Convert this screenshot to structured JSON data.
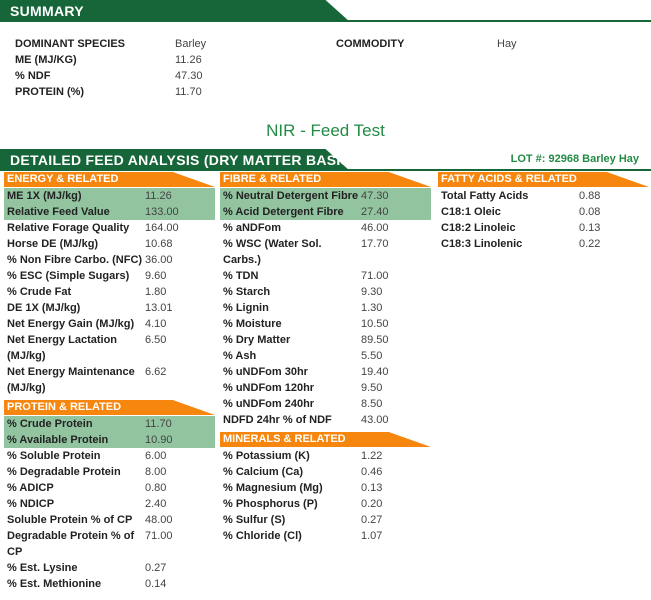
{
  "summary": {
    "title": "SUMMARY",
    "rows": [
      {
        "label": "DOMINANT SPECIES",
        "value": "Barley"
      },
      {
        "label": "ME (MJ/KG)",
        "value": "11.26"
      },
      {
        "label": "% NDF",
        "value": "47.30"
      },
      {
        "label": "PROTEIN (%)",
        "value": "11.70"
      }
    ],
    "commodity_label": "COMMODITY",
    "commodity_value": "Hay"
  },
  "report_title": "NIR - Feed Test",
  "detail": {
    "title": "DETAILED FEED ANALYSIS (DRY MATTER BASIS)",
    "lot": "LOT #: 92968 Barley Hay"
  },
  "colors": {
    "green": "#17663a",
    "orange": "#f7860e",
    "highlight": "#92c4a0"
  },
  "sections": [
    {
      "id": "energy",
      "col": 0,
      "title": "ENERGY & RELATED",
      "rows": [
        {
          "label": "ME 1X (MJ/kg)",
          "value": "11.26",
          "hl": true
        },
        {
          "label": "Relative Feed Value",
          "value": "133.00",
          "hl": true
        },
        {
          "label": "Relative Forage Quality",
          "value": "164.00"
        },
        {
          "label": "Horse DE (MJ/kg)",
          "value": "10.68"
        },
        {
          "label": "% Non Fibre Carbo. (NFC)",
          "value": "36.00"
        },
        {
          "label": "% ESC (Simple Sugars)",
          "value": "9.60"
        },
        {
          "label": "% Crude Fat",
          "value": "1.80"
        },
        {
          "label": "DE 1X (MJ/kg)",
          "value": "13.01"
        },
        {
          "label": "Net Energy Gain (MJ/kg)",
          "value": "4.10"
        },
        {
          "label": "Net Energy Lactation (MJ/kg)",
          "value": "6.50"
        },
        {
          "label": "Net Energy Maintenance (MJ/kg)",
          "value": "6.62"
        }
      ]
    },
    {
      "id": "protein",
      "col": 0,
      "title": "PROTEIN & RELATED",
      "rows": [
        {
          "label": "% Crude Protein",
          "value": "11.70",
          "hl": true
        },
        {
          "label": "% Available Protein",
          "value": "10.90",
          "hl": true
        },
        {
          "label": "% Soluble Protein",
          "value": "6.00"
        },
        {
          "label": "% Degradable Protein",
          "value": "8.00"
        },
        {
          "label": "% ADICP",
          "value": "0.80"
        },
        {
          "label": "% NDICP",
          "value": "2.40"
        },
        {
          "label": "Soluble Protein % of CP",
          "value": "48.00"
        },
        {
          "label": "Degradable Protein % of CP",
          "value": "71.00"
        },
        {
          "label": "% Est. Lysine",
          "value": "0.27"
        },
        {
          "label": "% Est. Methionine",
          "value": "0.14"
        }
      ]
    },
    {
      "id": "fibre",
      "col": 1,
      "title": "FIBRE & RELATED",
      "rows": [
        {
          "label": "% Neutral Detergent Fibre",
          "value": "47.30",
          "hl": true
        },
        {
          "label": "% Acid Detergent Fibre",
          "value": "27.40",
          "hl": true
        },
        {
          "label": "% aNDFom",
          "value": "46.00"
        },
        {
          "label": "% WSC (Water Sol. Carbs.)",
          "value": "17.70"
        },
        {
          "label": "% TDN",
          "value": "71.00"
        },
        {
          "label": "% Starch",
          "value": "9.30"
        },
        {
          "label": "% Lignin",
          "value": "1.30"
        },
        {
          "label": "% Moisture",
          "value": "10.50"
        },
        {
          "label": "% Dry Matter",
          "value": "89.50"
        },
        {
          "label": "% Ash",
          "value": "5.50"
        },
        {
          "label": "% uNDFom 30hr",
          "value": "19.40"
        },
        {
          "label": "% uNDFom 120hr",
          "value": "9.50"
        },
        {
          "label": "% uNDFom 240hr",
          "value": "8.50"
        },
        {
          "label": "NDFD 24hr % of NDF",
          "value": "43.00"
        }
      ]
    },
    {
      "id": "minerals",
      "col": 1,
      "title": "MINERALS & RELATED",
      "rows": [
        {
          "label": "% Potassium (K)",
          "value": "1.22"
        },
        {
          "label": "% Calcium (Ca)",
          "value": "0.46"
        },
        {
          "label": "% Magnesium (Mg)",
          "value": "0.13"
        },
        {
          "label": "% Phosphorus (P)",
          "value": "0.20"
        },
        {
          "label": "% Sulfur (S)",
          "value": "0.27"
        },
        {
          "label": "% Chloride (Cl)",
          "value": "1.07"
        }
      ]
    },
    {
      "id": "fatty",
      "col": 2,
      "title": "FATTY ACIDS & RELATED",
      "rows": [
        {
          "label": "Total Fatty Acids",
          "value": "0.88"
        },
        {
          "label": "C18:1 Oleic",
          "value": "0.08"
        },
        {
          "label": "C18:2 Linoleic",
          "value": "0.13"
        },
        {
          "label": "C18:3 Linolenic",
          "value": "0.22"
        }
      ]
    }
  ]
}
